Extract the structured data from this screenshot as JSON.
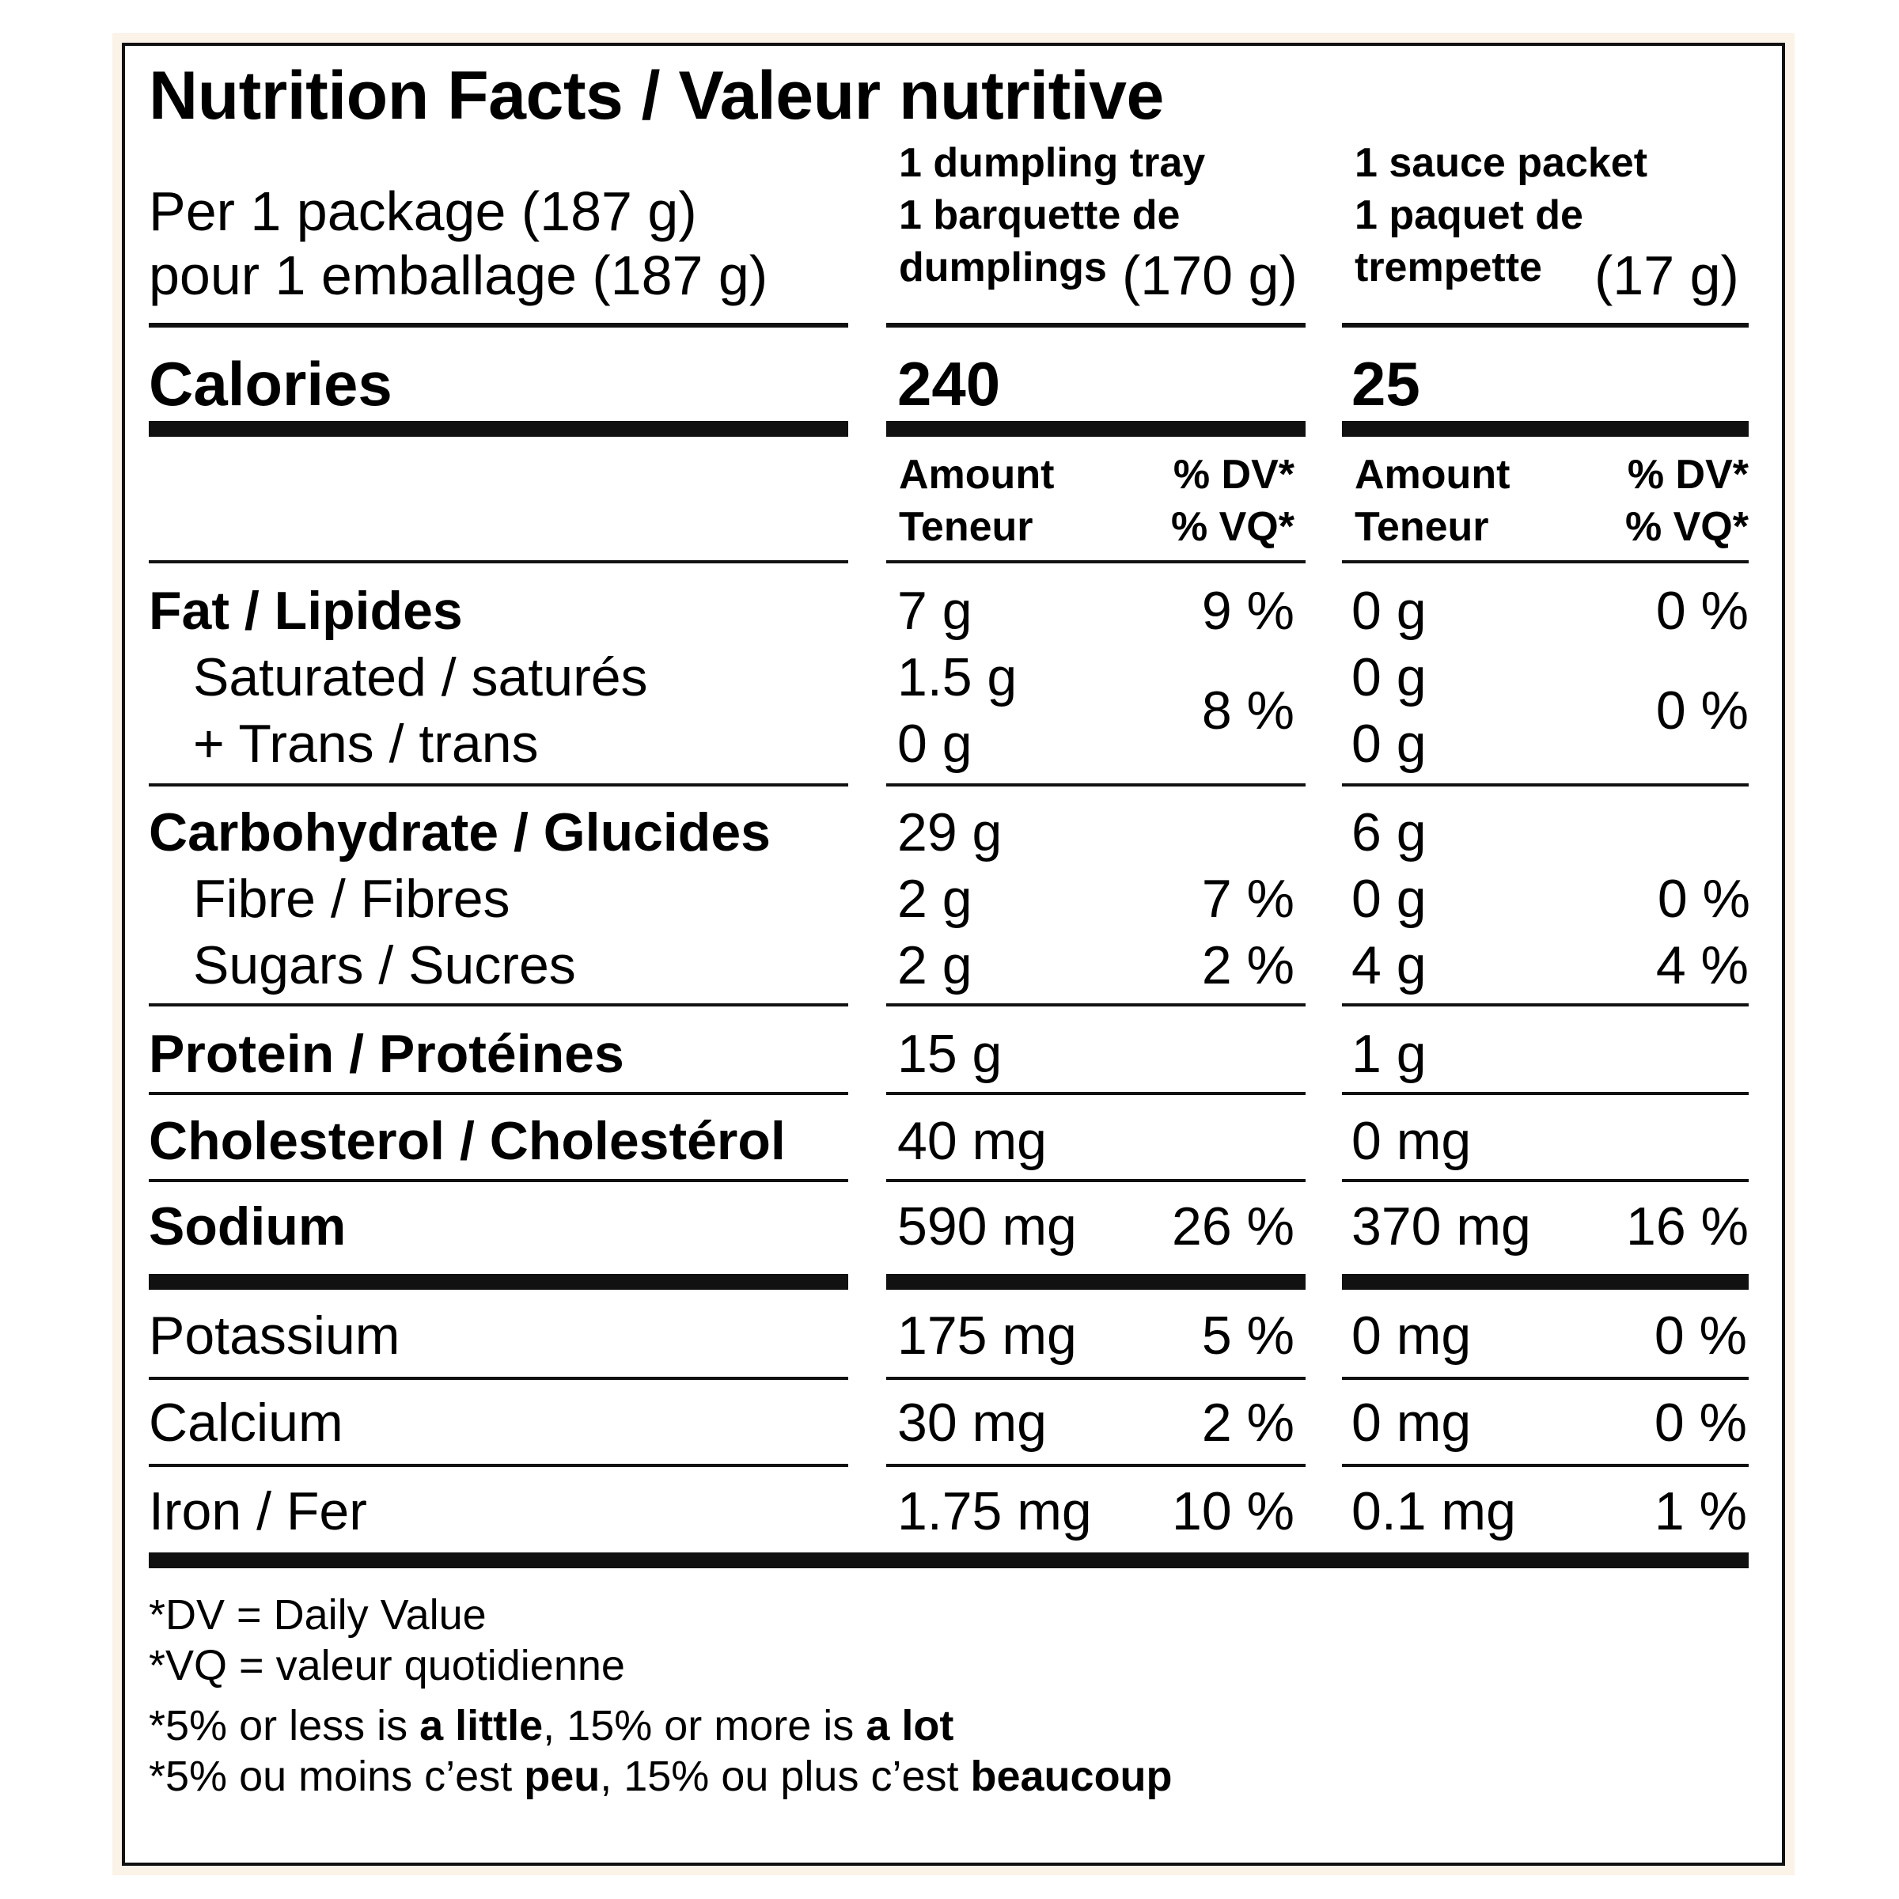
{
  "title": "Nutrition Facts / Valeur nutritive",
  "serving": {
    "line1": "Per 1 package (187 g)",
    "line2": "pour 1 emballage (187 g)"
  },
  "columns": [
    {
      "header_l1": "1 dumpling tray",
      "header_l2": "1 barquette de",
      "header_l3": "dumplings",
      "weight": "(170 g)",
      "calories": "240",
      "amount_en": "Amount",
      "amount_fr": "Teneur",
      "dv_en": "% DV*",
      "dv_fr": "% VQ*",
      "fat": "7 g",
      "fat_dv": "9 %",
      "sat": "1.5 g",
      "trans": "0 g",
      "sat_trans_dv": "8 %",
      "carb": "29 g",
      "fibre": "2 g",
      "fibre_dv": "7 %",
      "sugars": "2 g",
      "sugars_dv": "2 %",
      "protein": "15 g",
      "cholesterol": "40 mg",
      "sodium": "590 mg",
      "sodium_dv": "26 %",
      "potassium": "175 mg",
      "potassium_dv": "5 %",
      "calcium": "30 mg",
      "calcium_dv": "2 %",
      "iron": "1.75 mg",
      "iron_dv": "10 %"
    },
    {
      "header_l1": "1 sauce packet",
      "header_l2": "1 paquet de",
      "header_l3": "trempette",
      "weight": "(17 g)",
      "calories": "25",
      "amount_en": "Amount",
      "amount_fr": "Teneur",
      "dv_en": "% DV*",
      "dv_fr": "% VQ*",
      "fat": "0 g",
      "fat_dv": "0 %",
      "sat": "0 g",
      "trans": "0 g",
      "sat_trans_dv": "0 %",
      "carb": "6 g",
      "fibre": "0 g",
      "fibre_dv": "0 %",
      "sugars": "4 g",
      "sugars_dv": "4 %",
      "protein": "1 g",
      "cholesterol": "0 mg",
      "sodium": "370 mg",
      "sodium_dv": "16 %",
      "potassium": "0 mg",
      "potassium_dv": "0 %",
      "calcium": "0 mg",
      "calcium_dv": "0 %",
      "iron": "0.1 mg",
      "iron_dv": "1 %"
    }
  ],
  "labels": {
    "calories": "Calories",
    "fat": "Fat / Lipides",
    "sat": "Saturated / saturés",
    "trans": "+ Trans / trans",
    "carb": "Carbohydrate / Glucides",
    "fibre": "Fibre / Fibres",
    "sugars": "Sugars / Sucres",
    "protein": "Protein / Protéines",
    "cholesterol": "Cholesterol / Cholestérol",
    "sodium": "Sodium",
    "potassium": "Potassium",
    "calcium": "Calcium",
    "iron": "Iron / Fer"
  },
  "footnotes": {
    "dv": "*DV = Daily Value",
    "vq": "*VQ = valeur quotidienne",
    "en_pre": "*5% or less is ",
    "en_b1": "a little",
    "en_mid": ", 15% or more is ",
    "en_b2": "a lot",
    "fr_pre": "*5% ou moins c’est ",
    "fr_b1": "peu",
    "fr_mid": ", 15% ou plus c’est ",
    "fr_b2": "beaucoup"
  }
}
